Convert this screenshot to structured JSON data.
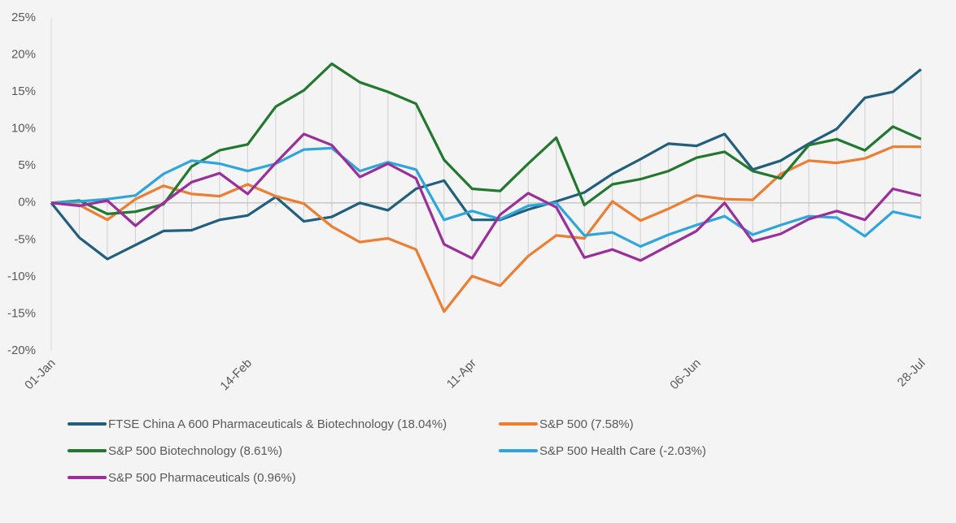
{
  "chart_data": {
    "type": "line",
    "categories": [
      "01-Jan",
      null,
      null,
      null,
      null,
      null,
      null,
      "14-Feb",
      null,
      null,
      null,
      null,
      null,
      null,
      null,
      "11-Apr",
      null,
      null,
      null,
      null,
      null,
      null,
      null,
      "06-Jun",
      null,
      null,
      null,
      null,
      null,
      null,
      null,
      "28-Jul"
    ],
    "ylim": [
      -20,
      25
    ],
    "yticks": [
      {
        "value": -20,
        "label": "-20%"
      },
      {
        "value": -15,
        "label": "-15%"
      },
      {
        "value": -10,
        "label": "-10%"
      },
      {
        "value": -5,
        "label": "-5%"
      },
      {
        "value": 0,
        "label": "0%"
      },
      {
        "value": 5,
        "label": "5%"
      },
      {
        "value": 10,
        "label": "10%"
      },
      {
        "value": 15,
        "label": "15%"
      },
      {
        "value": 20,
        "label": "20%"
      },
      {
        "value": 25,
        "label": "25%"
      }
    ],
    "legend": "bottom",
    "series": [
      {
        "name": "FTSE China A 600 Pharmaceuticals & Biotechnology (18.04%)",
        "color": "#215f7d",
        "values": [
          0,
          -4.7,
          -7.6,
          -5.7,
          -3.8,
          -3.7,
          -2.3,
          -1.7,
          0.8,
          -2.5,
          -1.9,
          0,
          -1.0,
          1.9,
          3.0,
          -2.3,
          -2.3,
          -0.9,
          0.2,
          1.4,
          3.9,
          5.9,
          8.0,
          7.7,
          9.3,
          4.5,
          5.7,
          8.0,
          10.0,
          14.2,
          15.0,
          18.04
        ]
      },
      {
        "name": "S&P 500 (7.58%)",
        "color": "#ed7d31",
        "values": [
          0,
          -0.3,
          -2.3,
          0.5,
          2.3,
          1.2,
          0.9,
          2.5,
          0.9,
          -0.1,
          -3.2,
          -5.3,
          -4.8,
          -6.3,
          -14.7,
          -9.9,
          -11.2,
          -7.2,
          -4.4,
          -4.8,
          0.2,
          -2.4,
          -0.8,
          1.0,
          0.5,
          0.4,
          3.9,
          5.7,
          5.4,
          6.0,
          7.58,
          7.58
        ]
      },
      {
        "name": "S&P 500 Biotechnology (8.61%)",
        "color": "#23782f",
        "values": [
          0,
          0.3,
          -1.5,
          -1.2,
          -0.2,
          4.9,
          7.1,
          7.9,
          13.0,
          15.2,
          18.8,
          16.3,
          15.0,
          13.4,
          5.8,
          1.9,
          1.6,
          5.3,
          8.8,
          -0.3,
          2.5,
          3.2,
          4.3,
          6.1,
          6.9,
          4.3,
          3.3,
          7.8,
          8.6,
          7.1,
          10.3,
          8.61
        ]
      },
      {
        "name": "S&P 500 Health Care (-2.03%)",
        "color": "#2ea6dc",
        "values": [
          0,
          0.2,
          0.5,
          1.0,
          3.9,
          5.7,
          5.3,
          4.3,
          5.3,
          7.2,
          7.4,
          4.3,
          5.5,
          4.5,
          -2.3,
          -1.1,
          -2.2,
          -0.4,
          0,
          -4.4,
          -4.0,
          -5.9,
          -4.3,
          -3.0,
          -1.8,
          -4.3,
          -3.0,
          -1.8,
          -2.0,
          -4.5,
          -1.2,
          -2.03
        ]
      },
      {
        "name": "S&P 500 Pharmaceuticals (0.96%)",
        "color": "#9a2f9a",
        "values": [
          0,
          -0.4,
          0.3,
          -3.1,
          0,
          2.8,
          4.0,
          1.2,
          5.4,
          9.3,
          7.8,
          3.5,
          5.3,
          3.3,
          -5.6,
          -7.5,
          -1.6,
          1.3,
          -0.6,
          -7.4,
          -6.3,
          -7.8,
          -5.8,
          -3.8,
          0,
          -5.2,
          -4.2,
          -2.2,
          -1.1,
          -2.3,
          1.9,
          0.96
        ]
      }
    ]
  }
}
